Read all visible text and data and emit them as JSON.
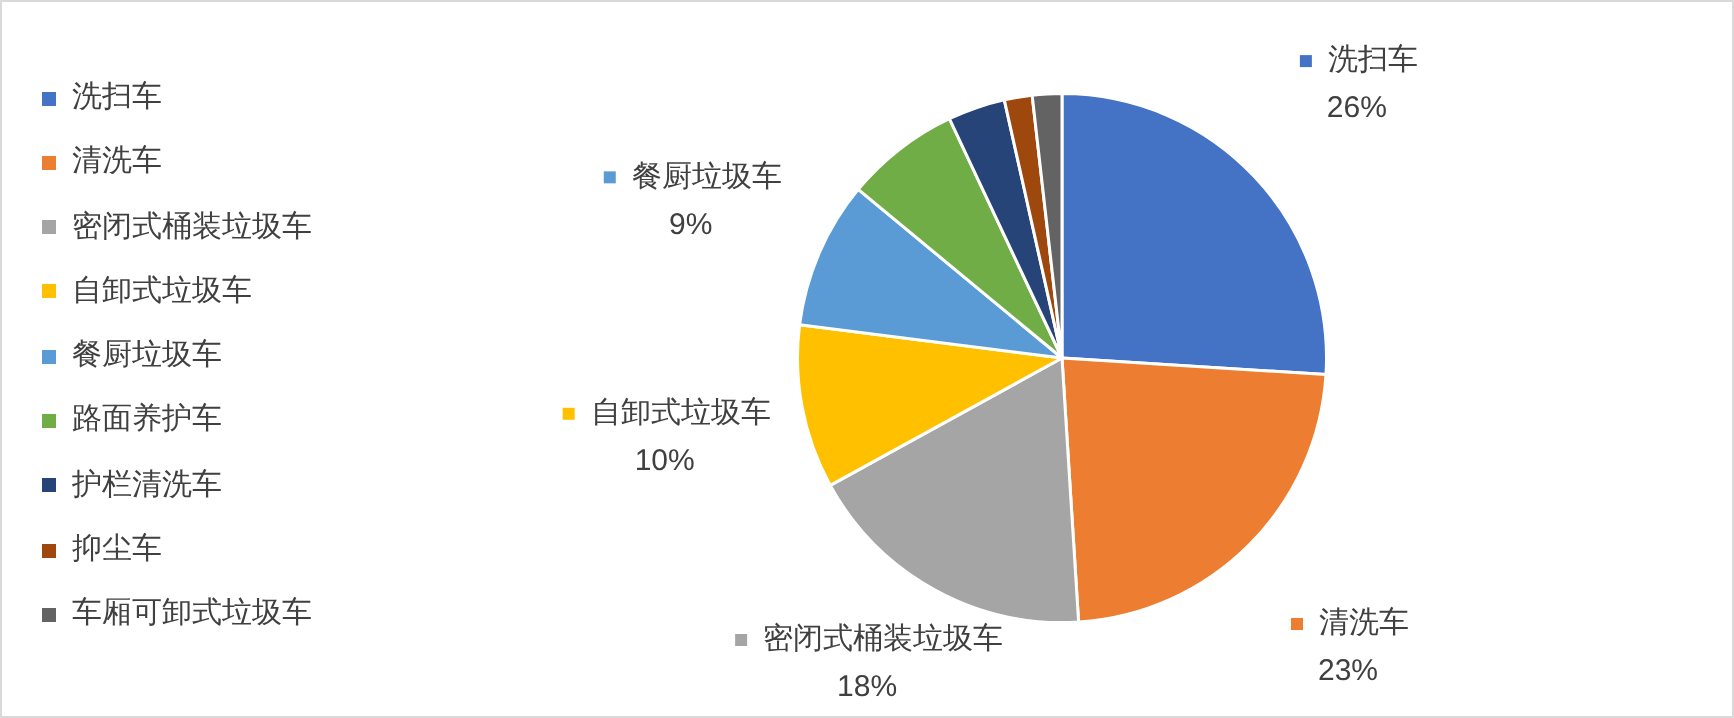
{
  "chart_data": {
    "type": "pie",
    "categories": [
      "洗扫车",
      "清洗车",
      "密闭式桶装垃圾车",
      "自卸式垃圾车",
      "餐厨垃圾车",
      "路面养护车",
      "护栏清洗车",
      "抑尘车",
      "车厢可卸式垃圾车"
    ],
    "values": [
      26,
      23,
      18,
      10,
      9,
      7,
      3.5,
      1.7,
      1.8
    ],
    "colors": [
      "#4472c4",
      "#ed7d31",
      "#a5a5a5",
      "#ffc000",
      "#5b9bd5",
      "#70ad47",
      "#264478",
      "#9e480e",
      "#636363"
    ],
    "value_labels": [
      "26%",
      "23%",
      "18%",
      "10%",
      "9%",
      null,
      null,
      null,
      null
    ],
    "legend": "left"
  }
}
